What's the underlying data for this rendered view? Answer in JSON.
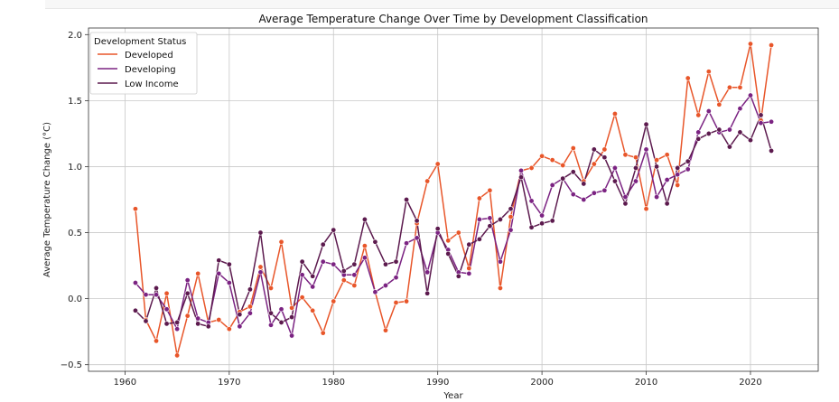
{
  "chart_data": {
    "type": "line",
    "title": "Average Temperature Change Over Time by Development Classification",
    "xlabel": "Year",
    "ylabel": "Average Temperature Change (°C)",
    "xlim": [
      1956.5,
      2026.5
    ],
    "ylim": [
      -0.55,
      2.05
    ],
    "x_ticks": [
      1960,
      1970,
      1980,
      1990,
      2000,
      2010,
      2020
    ],
    "y_ticks": [
      -0.5,
      0.0,
      0.5,
      1.0,
      1.5,
      2.0
    ],
    "x_tick_labels": [
      "1960",
      "1970",
      "1980",
      "1990",
      "2000",
      "2010",
      "2020"
    ],
    "y_tick_labels": [
      "−0.5",
      "0.0",
      "0.5",
      "1.0",
      "1.5",
      "2.0"
    ],
    "grid": true,
    "legend": {
      "title": "Development Status",
      "placement": "top-left"
    },
    "x": [
      1961,
      1962,
      1963,
      1964,
      1965,
      1966,
      1967,
      1968,
      1969,
      1970,
      1971,
      1972,
      1973,
      1974,
      1975,
      1976,
      1977,
      1978,
      1979,
      1980,
      1981,
      1982,
      1983,
      1984,
      1985,
      1986,
      1987,
      1988,
      1989,
      1990,
      1991,
      1992,
      1993,
      1994,
      1995,
      1996,
      1997,
      1998,
      1999,
      2000,
      2001,
      2002,
      2003,
      2004,
      2005,
      2006,
      2007,
      2008,
      2009,
      2010,
      2011,
      2012,
      2013,
      2014,
      2015,
      2016,
      2017,
      2018,
      2019,
      2020,
      2021,
      2022
    ],
    "series": [
      {
        "name": "Developed",
        "color": "#e8562a",
        "values": [
          0.68,
          -0.16,
          -0.32,
          0.04,
          -0.43,
          -0.13,
          0.19,
          -0.18,
          -0.16,
          -0.23,
          -0.1,
          -0.06,
          0.24,
          0.08,
          0.43,
          -0.07,
          0.01,
          -0.09,
          -0.26,
          -0.02,
          0.14,
          0.1,
          0.4,
          0.05,
          -0.24,
          -0.03,
          -0.02,
          0.57,
          0.89,
          1.02,
          0.44,
          0.5,
          0.23,
          0.76,
          0.82,
          0.08,
          0.62,
          0.97,
          0.99,
          1.08,
          1.05,
          1.01,
          1.14,
          0.89,
          1.02,
          1.13,
          1.4,
          1.09,
          1.07,
          0.68,
          1.05,
          1.09,
          0.86,
          1.67,
          1.39,
          1.72,
          1.47,
          1.6,
          1.6,
          1.93,
          1.35,
          1.92
        ]
      },
      {
        "name": "Developing",
        "color": "#7b2382",
        "values": [
          0.12,
          0.03,
          0.03,
          -0.08,
          -0.23,
          0.14,
          -0.15,
          -0.18,
          0.19,
          0.12,
          -0.21,
          -0.11,
          0.2,
          -0.2,
          -0.08,
          -0.28,
          0.18,
          0.09,
          0.28,
          0.26,
          0.18,
          0.18,
          0.31,
          0.05,
          0.1,
          0.16,
          0.42,
          0.46,
          0.2,
          0.5,
          0.37,
          0.2,
          0.19,
          0.6,
          0.61,
          0.28,
          0.52,
          0.97,
          0.74,
          0.63,
          0.86,
          0.91,
          0.79,
          0.75,
          0.8,
          0.82,
          0.99,
          0.77,
          0.89,
          1.13,
          0.77,
          0.9,
          0.94,
          0.98,
          1.26,
          1.42,
          1.26,
          1.28,
          1.44,
          1.54,
          1.33,
          1.34
        ]
      },
      {
        "name": "Low Income",
        "color": "#5c1a4e",
        "values": [
          -0.09,
          -0.17,
          0.08,
          -0.19,
          -0.18,
          0.04,
          -0.19,
          -0.21,
          0.29,
          0.26,
          -0.12,
          0.07,
          0.5,
          -0.11,
          -0.18,
          -0.14,
          0.28,
          0.17,
          0.41,
          0.52,
          0.21,
          0.26,
          0.6,
          0.43,
          0.26,
          0.28,
          0.75,
          0.59,
          0.04,
          0.53,
          0.34,
          0.17,
          0.41,
          0.45,
          0.55,
          0.6,
          0.68,
          0.92,
          0.54,
          0.57,
          0.59,
          0.91,
          0.96,
          0.87,
          1.13,
          1.07,
          0.89,
          0.72,
          0.99,
          1.32,
          1.0,
          0.72,
          0.99,
          1.04,
          1.21,
          1.25,
          1.28,
          1.15,
          1.26,
          1.2,
          1.39,
          1.12
        ]
      }
    ]
  }
}
